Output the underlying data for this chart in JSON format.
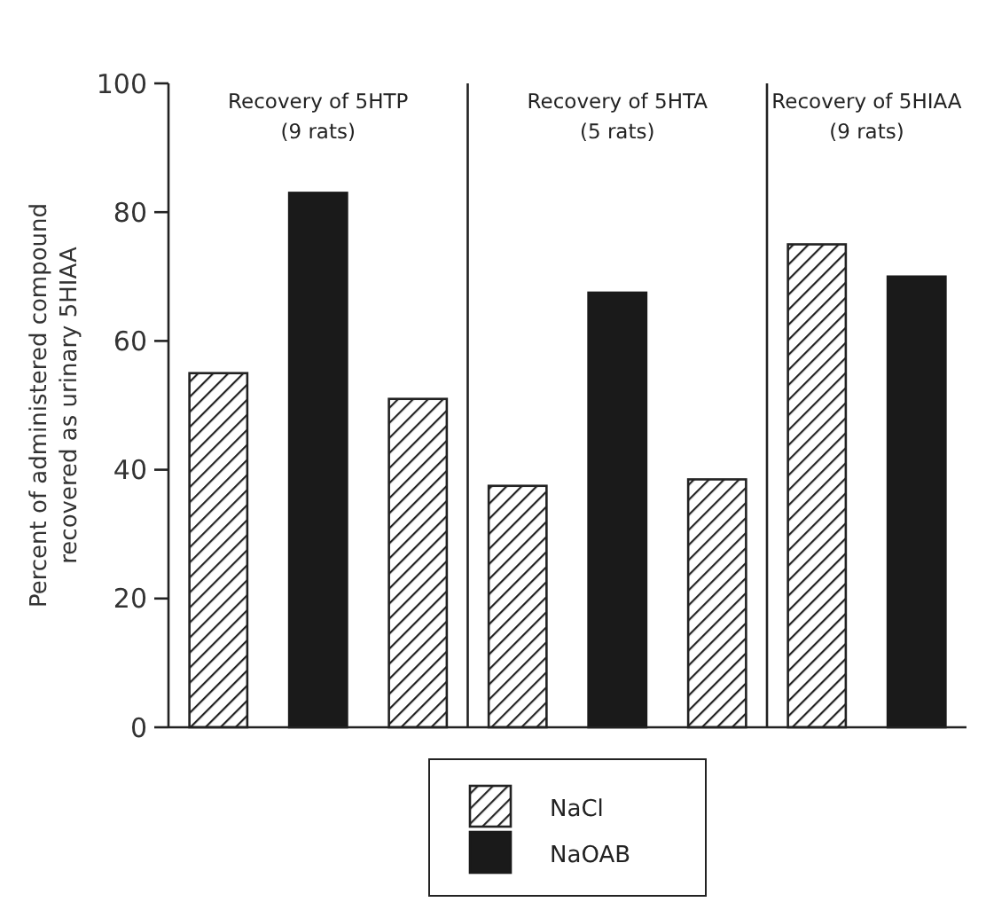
{
  "chart_data": {
    "type": "bar",
    "ylabel": "Percent of administered compound recovered as urinary 5HIAA",
    "categories": [
      null,
      null,
      null,
      null,
      null,
      null,
      null,
      null
    ],
    "ylim": [
      0,
      100
    ],
    "yticks": [
      0,
      20,
      40,
      60,
      80,
      100
    ],
    "legend": "bottom",
    "annotations": [
      "Recovery of 5HTP (9 rats)",
      "Recovery of 5HTA (5 rats)",
      "Recovery of 5HIAA (9 rats)"
    ],
    "series": [
      {
        "name": "NaCl",
        "color": "#222222",
        "values": [
          55,
          null,
          51,
          37.5,
          null,
          38.5,
          75,
          null
        ]
      },
      {
        "name": "NaOAB",
        "color": "#1a1a1a",
        "values": [
          null,
          83,
          null,
          null,
          67.5,
          null,
          null,
          70
        ]
      }
    ]
  }
}
